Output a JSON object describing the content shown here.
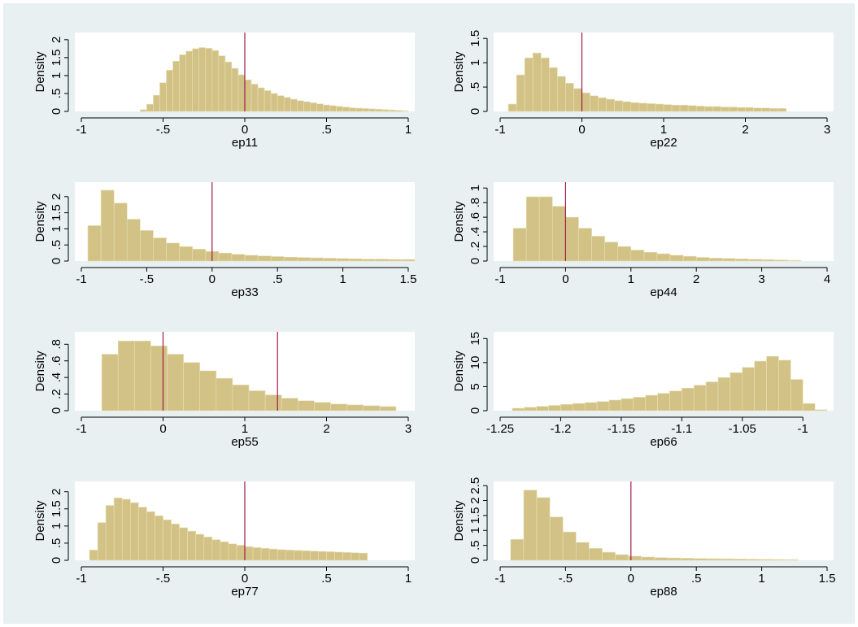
{
  "chart_data": [
    {
      "type": "histogram",
      "x_label": "ep11",
      "y_label": "Density",
      "color": "#d2c285",
      "edge_color": "#e9e0b8",
      "xline_color": "#9e1b4a",
      "bins": [
        -0.64,
        -0.6,
        -0.56,
        -0.52,
        -0.48,
        -0.44,
        -0.4,
        -0.36,
        -0.32,
        -0.28,
        -0.24,
        -0.2,
        -0.16,
        -0.12,
        -0.08,
        -0.04,
        0,
        0.04,
        0.08,
        0.12,
        0.16,
        0.2,
        0.24,
        0.28,
        0.32,
        0.36,
        0.4,
        0.44,
        0.48,
        0.52,
        0.56,
        0.6,
        0.64,
        0.68,
        0.72,
        0.76,
        0.8,
        0.84,
        0.88,
        0.92,
        0.96,
        1
      ],
      "values": [
        0.05,
        0.2,
        0.45,
        0.8,
        1.15,
        1.4,
        1.58,
        1.68,
        1.75,
        1.78,
        1.76,
        1.7,
        1.55,
        1.38,
        1.2,
        1.02,
        0.88,
        0.76,
        0.66,
        0.58,
        0.5,
        0.44,
        0.39,
        0.34,
        0.3,
        0.27,
        0.24,
        0.21,
        0.18,
        0.16,
        0.14,
        0.12,
        0.1,
        0.09,
        0.08,
        0.07,
        0.06,
        0.05,
        0.04,
        0.03,
        0.02
      ],
      "xlim": [
        -1,
        1
      ],
      "xticks": [
        -1,
        {
          "value": -0.5,
          "label": "-.5"
        },
        0,
        {
          "value": 0.5,
          "label": ".5"
        },
        1
      ],
      "ylim": [
        0,
        2.2
      ],
      "yticks": [
        0,
        {
          "value": 0.5,
          "label": ".5"
        },
        1,
        1.5,
        2
      ],
      "xlines": [
        0
      ]
    },
    {
      "type": "histogram",
      "x_label": "ep22",
      "y_label": "Density",
      "color": "#d2c285",
      "edge_color": "#e9e0b8",
      "xline_color": "#9e1b4a",
      "bins": [
        -0.9,
        -0.8,
        -0.7,
        -0.6,
        -0.5,
        -0.4,
        -0.3,
        -0.2,
        -0.1,
        0,
        0.1,
        0.2,
        0.3,
        0.4,
        0.5,
        0.6,
        0.7,
        0.8,
        0.9,
        1,
        1.1,
        1.2,
        1.3,
        1.4,
        1.5,
        1.6,
        1.7,
        1.8,
        1.9,
        2,
        2.1,
        2.2,
        2.3,
        2.4,
        2.5
      ],
      "values": [
        0.15,
        0.75,
        1.1,
        1.2,
        1.1,
        0.9,
        0.72,
        0.58,
        0.47,
        0.38,
        0.32,
        0.28,
        0.25,
        0.22,
        0.2,
        0.18,
        0.17,
        0.16,
        0.15,
        0.14,
        0.13,
        0.13,
        0.12,
        0.11,
        0.1,
        0.1,
        0.09,
        0.09,
        0.08,
        0.08,
        0.07,
        0.07,
        0.06,
        0.06
      ],
      "xlim": [
        -1,
        3
      ],
      "xticks": [
        -1,
        0,
        1,
        2,
        3
      ],
      "ylim": [
        0,
        1.62
      ],
      "yticks": [
        0,
        {
          "value": 0.5,
          "label": ".5"
        },
        1,
        1.5
      ],
      "xlines": [
        0
      ]
    },
    {
      "type": "histogram",
      "x_label": "ep33",
      "y_label": "Density",
      "color": "#d2c285",
      "edge_color": "#e9e0b8",
      "xline_color": "#9e1b4a",
      "bins": [
        -0.95,
        -0.85,
        -0.75,
        -0.65,
        -0.55,
        -0.45,
        -0.35,
        -0.25,
        -0.15,
        -0.05,
        0.05,
        0.15,
        0.25,
        0.35,
        0.45,
        0.55,
        0.65,
        0.75,
        0.85,
        0.95,
        1.05,
        1.15,
        1.25,
        1.35,
        1.45,
        1.55
      ],
      "values": [
        1.1,
        2.2,
        1.8,
        1.3,
        0.95,
        0.72,
        0.56,
        0.45,
        0.37,
        0.3,
        0.25,
        0.21,
        0.18,
        0.16,
        0.14,
        0.12,
        0.11,
        0.1,
        0.09,
        0.08,
        0.07,
        0.06,
        0.06,
        0.05,
        0.05
      ],
      "xlim": [
        -1,
        1.5
      ],
      "xticks": [
        -1,
        {
          "value": -0.5,
          "label": "-.5"
        },
        0,
        {
          "value": 0.5,
          "label": ".5"
        },
        1,
        1.5
      ],
      "ylim": [
        0,
        2.45
      ],
      "yticks": [
        0,
        {
          "value": 0.5,
          "label": ".5"
        },
        1,
        1.5,
        2
      ],
      "xlines": [
        0
      ]
    },
    {
      "type": "histogram",
      "x_label": "ep44",
      "y_label": "Density",
      "color": "#d2c285",
      "edge_color": "#e9e0b8",
      "xline_color": "#9e1b4a",
      "bins": [
        -0.8,
        -0.6,
        -0.4,
        -0.2,
        0,
        0.2,
        0.4,
        0.6,
        0.8,
        1,
        1.2,
        1.4,
        1.6,
        1.8,
        2,
        2.2,
        2.4,
        2.6,
        2.8,
        3,
        3.2,
        3.4,
        3.6
      ],
      "values": [
        0.45,
        0.88,
        0.88,
        0.75,
        0.6,
        0.45,
        0.34,
        0.26,
        0.2,
        0.15,
        0.12,
        0.1,
        0.08,
        0.065,
        0.05,
        0.04,
        0.035,
        0.03,
        0.025,
        0.02,
        0.015,
        0.01
      ],
      "xlim": [
        -1,
        4
      ],
      "xticks": [
        -1,
        0,
        1,
        2,
        3,
        4
      ],
      "ylim": [
        0,
        1.08
      ],
      "yticks": [
        0,
        {
          "value": 0.2,
          "label": ".2"
        },
        {
          "value": 0.4,
          "label": ".4"
        },
        {
          "value": 0.6,
          "label": ".6"
        },
        {
          "value": 0.8,
          "label": ".8"
        },
        1
      ],
      "xlines": [
        0
      ]
    },
    {
      "type": "histogram",
      "x_label": "ep55",
      "y_label": "Density",
      "color": "#d2c285",
      "edge_color": "#e9e0b8",
      "xline_color": "#9e1b4a",
      "bins": [
        -0.75,
        -0.55,
        -0.35,
        -0.15,
        0.05,
        0.25,
        0.45,
        0.65,
        0.85,
        1.05,
        1.25,
        1.45,
        1.65,
        1.85,
        2.05,
        2.25,
        2.45,
        2.65,
        2.85
      ],
      "values": [
        0.68,
        0.84,
        0.84,
        0.78,
        0.68,
        0.58,
        0.48,
        0.39,
        0.31,
        0.24,
        0.19,
        0.15,
        0.12,
        0.1,
        0.08,
        0.07,
        0.06,
        0.05
      ],
      "xlim": [
        -1,
        3
      ],
      "xticks": [
        -1,
        0,
        1,
        2,
        3
      ],
      "ylim": [
        0,
        0.95
      ],
      "yticks": [
        0,
        {
          "value": 0.2,
          "label": ".2"
        },
        {
          "value": 0.4,
          "label": ".4"
        },
        {
          "value": 0.6,
          "label": ".6"
        },
        {
          "value": 0.8,
          "label": ".8"
        }
      ],
      "xlines": [
        0,
        1.4
      ]
    },
    {
      "type": "histogram",
      "x_label": "ep66",
      "y_label": "Density",
      "color": "#d2c285",
      "edge_color": "#e9e0b8",
      "xline_color": "#9e1b4a",
      "bins": [
        -1.24,
        -1.23,
        -1.22,
        -1.21,
        -1.2,
        -1.19,
        -1.18,
        -1.17,
        -1.16,
        -1.15,
        -1.14,
        -1.13,
        -1.12,
        -1.11,
        -1.1,
        -1.09,
        -1.08,
        -1.07,
        -1.06,
        -1.05,
        -1.04,
        -1.03,
        -1.02,
        -1.01,
        -1,
        -0.99,
        -0.98
      ],
      "values": [
        0.5,
        0.7,
        0.9,
        1.1,
        1.3,
        1.5,
        1.7,
        1.9,
        2.2,
        2.5,
        2.8,
        3.2,
        3.6,
        4.1,
        4.7,
        5.3,
        6,
        6.9,
        7.9,
        9,
        10.3,
        11.3,
        10.5,
        6.5,
        1.5,
        0.2
      ],
      "xlim": [
        -1.25,
        -0.98
      ],
      "xticks": [
        -1.25,
        -1.2,
        -1.15,
        -1.1,
        -1.05,
        -1
      ],
      "ylim": [
        0,
        16.4
      ],
      "yticks": [
        0,
        5,
        10,
        15
      ],
      "xlines": []
    },
    {
      "type": "histogram",
      "x_label": "ep77",
      "y_label": "Density",
      "color": "#d2c285",
      "edge_color": "#e9e0b8",
      "xline_color": "#9e1b4a",
      "bins": [
        -0.95,
        -0.9,
        -0.85,
        -0.8,
        -0.75,
        -0.7,
        -0.65,
        -0.6,
        -0.55,
        -0.5,
        -0.45,
        -0.4,
        -0.35,
        -0.3,
        -0.25,
        -0.2,
        -0.15,
        -0.1,
        -0.05,
        0,
        0.05,
        0.1,
        0.15,
        0.2,
        0.25,
        0.3,
        0.35,
        0.4,
        0.45,
        0.5,
        0.55,
        0.6,
        0.65,
        0.7,
        0.75
      ],
      "values": [
        0.3,
        1.1,
        1.6,
        1.82,
        1.78,
        1.68,
        1.55,
        1.42,
        1.3,
        1.18,
        1.06,
        0.95,
        0.85,
        0.76,
        0.68,
        0.6,
        0.54,
        0.48,
        0.44,
        0.4,
        0.37,
        0.35,
        0.33,
        0.31,
        0.3,
        0.29,
        0.28,
        0.27,
        0.26,
        0.25,
        0.24,
        0.23,
        0.22,
        0.21
      ],
      "xlim": [
        -1,
        1
      ],
      "xticks": [
        -1,
        {
          "value": -0.5,
          "label": "-.5"
        },
        0,
        {
          "value": 0.5,
          "label": ".5"
        },
        1
      ],
      "ylim": [
        0,
        2.3
      ],
      "yticks": [
        0,
        {
          "value": 0.5,
          "label": ".5"
        },
        1,
        1.5,
        2
      ],
      "xlines": [
        0
      ]
    },
    {
      "type": "histogram",
      "x_label": "ep88",
      "y_label": "Density",
      "color": "#d2c285",
      "edge_color": "#e9e0b8",
      "xline_color": "#9e1b4a",
      "bins": [
        -0.92,
        -0.82,
        -0.72,
        -0.62,
        -0.52,
        -0.42,
        -0.32,
        -0.22,
        -0.12,
        -0.02,
        0.08,
        0.18,
        0.28,
        0.38,
        0.48,
        0.58,
        0.68,
        0.78,
        0.88,
        0.98,
        1.08,
        1.18,
        1.28
      ],
      "values": [
        0.7,
        2.35,
        2.1,
        1.45,
        0.95,
        0.6,
        0.4,
        0.27,
        0.19,
        0.14,
        0.11,
        0.09,
        0.08,
        0.07,
        0.06,
        0.055,
        0.05,
        0.045,
        0.04,
        0.035,
        0.03,
        0.025
      ],
      "xlim": [
        -1,
        1.5
      ],
      "xticks": [
        -1,
        {
          "value": -0.5,
          "label": "-.5"
        },
        0,
        {
          "value": 0.5,
          "label": ".5"
        },
        1,
        1.5
      ],
      "ylim": [
        0,
        2.64
      ],
      "yticks": [
        0,
        {
          "value": 0.5,
          "label": ".5"
        },
        1,
        1.5,
        2,
        2.5
      ],
      "xlines": [
        0
      ]
    }
  ]
}
